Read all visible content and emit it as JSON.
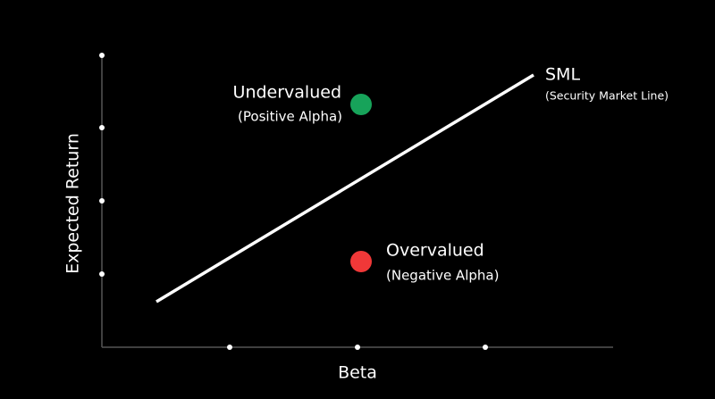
{
  "diagram": {
    "axes": {
      "x_label": "Beta",
      "y_label": "Expected Return"
    },
    "line": {
      "label": "SML",
      "sublabel": "(Security Market Line)"
    },
    "nodes": [
      {
        "label": "Undervalued",
        "sublabel": "(Positive Alpha)"
      },
      {
        "label": "Overvalued",
        "sublabel": "(Negative Alpha)"
      }
    ]
  }
}
